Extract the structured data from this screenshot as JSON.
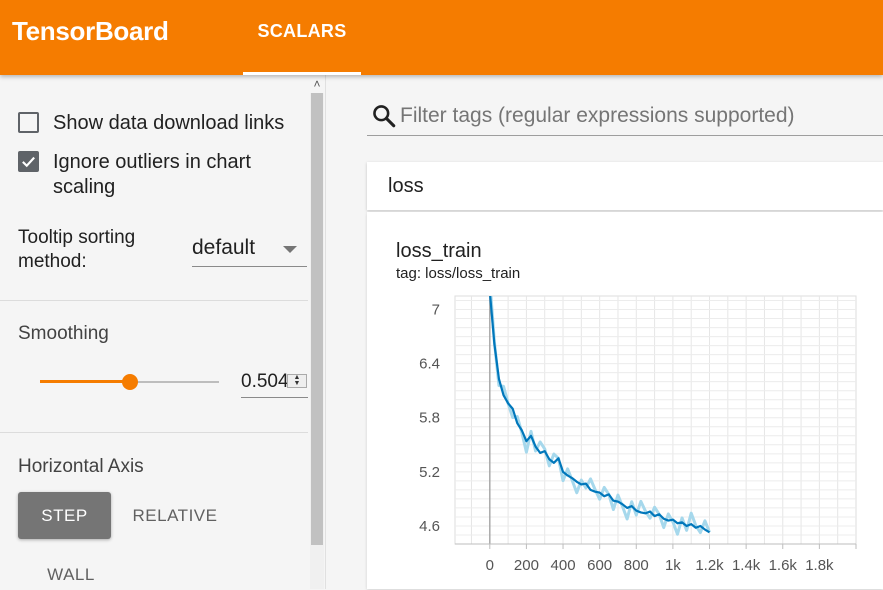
{
  "app": {
    "title": "TensorBoard"
  },
  "nav": {
    "tabs": [
      {
        "label": "SCALARS",
        "active": true
      }
    ]
  },
  "sidebar": {
    "show_download_links": {
      "label": "Show data download links",
      "checked": false
    },
    "ignore_outliers": {
      "label": "Ignore outliers in chart scaling",
      "checked": true
    },
    "tooltip_sorting": {
      "label": "Tooltip sorting method:",
      "value": "default"
    },
    "smoothing": {
      "title": "Smoothing",
      "value": "0.504",
      "level": 0.504
    },
    "horizontal_axis": {
      "title": "Horizontal Axis",
      "options": [
        "STEP",
        "RELATIVE",
        "WALL"
      ],
      "selected": "STEP"
    }
  },
  "search": {
    "placeholder": "Filter tags (regular expressions supported)",
    "value": ""
  },
  "category": {
    "title": "loss"
  },
  "card": {
    "title": "loss_train",
    "tag": "tag: loss/loss_train"
  },
  "colors": {
    "accent": "#f57c00",
    "series": "#0077bb",
    "series_raw": "#a6d8ec"
  },
  "chart_data": {
    "type": "line",
    "title": "loss_train",
    "xlabel": "",
    "ylabel": "",
    "x_ticks": [
      "0",
      "200",
      "400",
      "600",
      "800",
      "1k",
      "1.2k",
      "1.4k",
      "1.6k",
      "1.8k"
    ],
    "y_ticks": [
      "7",
      "6.4",
      "5.8",
      "5.2",
      "4.6"
    ],
    "xlim": [
      -190,
      2000
    ],
    "ylim": [
      4.4,
      7.15
    ],
    "grid": true,
    "series": [
      {
        "x": [
          0,
          25,
          50,
          75,
          100,
          125,
          150,
          175,
          200,
          225,
          250,
          275,
          300,
          325,
          350,
          375,
          400,
          425,
          450,
          475,
          500,
          525,
          550,
          575,
          600,
          625,
          650,
          675,
          700,
          725,
          750,
          775,
          800,
          825,
          850,
          875,
          900,
          925,
          950,
          975,
          1000,
          1025,
          1050,
          1075,
          1100,
          1125,
          1150,
          1175,
          1200
        ],
        "y": [
          7.2,
          6.62,
          6.23,
          6.05,
          5.96,
          5.9,
          5.74,
          5.66,
          5.54,
          5.6,
          5.48,
          5.41,
          5.43,
          5.34,
          5.3,
          5.35,
          5.2,
          5.16,
          5.13,
          5.09,
          5.06,
          5.07,
          5.0,
          4.98,
          4.97,
          4.93,
          4.95,
          4.88,
          4.87,
          4.84,
          4.8,
          4.82,
          4.77,
          4.75,
          4.74,
          4.76,
          4.71,
          4.73,
          4.68,
          4.66,
          4.67,
          4.63,
          4.64,
          4.6,
          4.62,
          4.58,
          4.6,
          4.56,
          4.53
        ]
      }
    ]
  }
}
